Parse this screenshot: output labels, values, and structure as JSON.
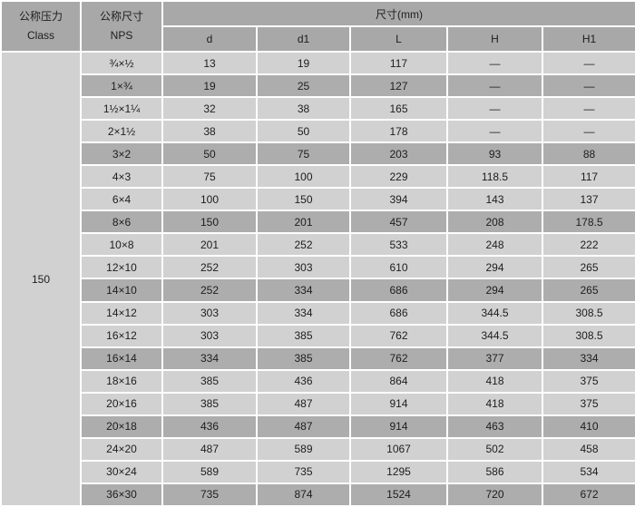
{
  "chart_data": {
    "type": "table",
    "title": "",
    "header": {
      "pressure_label_cn": "公称压力",
      "pressure_label_en": "Class",
      "size_label_cn": "公称尺寸",
      "size_label_en": "NPS",
      "dimensions_label": "尺寸(mm)",
      "sub_columns": [
        "d",
        "d1",
        "L",
        "H",
        "H1"
      ]
    },
    "class_value": "150",
    "rows": [
      {
        "nps": "¾×½",
        "d": "13",
        "d1": "19",
        "L": "117",
        "H": "—",
        "H1": "—"
      },
      {
        "nps": "1×¾",
        "d": "19",
        "d1": "25",
        "L": "127",
        "H": "—",
        "H1": "—"
      },
      {
        "nps": "1½×1¼",
        "d": "32",
        "d1": "38",
        "L": "165",
        "H": "—",
        "H1": "—"
      },
      {
        "nps": "2×1½",
        "d": "38",
        "d1": "50",
        "L": "178",
        "H": "—",
        "H1": "—"
      },
      {
        "nps": "3×2",
        "d": "50",
        "d1": "75",
        "L": "203",
        "H": "93",
        "H1": "88"
      },
      {
        "nps": "4×3",
        "d": "75",
        "d1": "100",
        "L": "229",
        "H": "118.5",
        "H1": "117"
      },
      {
        "nps": "6×4",
        "d": "100",
        "d1": "150",
        "L": "394",
        "H": "143",
        "H1": "137"
      },
      {
        "nps": "8×6",
        "d": "150",
        "d1": "201",
        "L": "457",
        "H": "208",
        "H1": "178.5"
      },
      {
        "nps": "10×8",
        "d": "201",
        "d1": "252",
        "L": "533",
        "H": "248",
        "H1": "222"
      },
      {
        "nps": "12×10",
        "d": "252",
        "d1": "303",
        "L": "610",
        "H": "294",
        "H1": "265"
      },
      {
        "nps": "14×10",
        "d": "252",
        "d1": "334",
        "L": "686",
        "H": "294",
        "H1": "265"
      },
      {
        "nps": "14×12",
        "d": "303",
        "d1": "334",
        "L": "686",
        "H": "344.5",
        "H1": "308.5"
      },
      {
        "nps": "16×12",
        "d": "303",
        "d1": "385",
        "L": "762",
        "H": "344.5",
        "H1": "308.5"
      },
      {
        "nps": "16×14",
        "d": "334",
        "d1": "385",
        "L": "762",
        "H": "377",
        "H1": "334"
      },
      {
        "nps": "18×16",
        "d": "385",
        "d1": "436",
        "L": "864",
        "H": "418",
        "H1": "375"
      },
      {
        "nps": "20×16",
        "d": "385",
        "d1": "487",
        "L": "914",
        "H": "418",
        "H1": "375"
      },
      {
        "nps": "20×18",
        "d": "436",
        "d1": "487",
        "L": "914",
        "H": "463",
        "H1": "410"
      },
      {
        "nps": "24×20",
        "d": "487",
        "d1": "589",
        "L": "1067",
        "H": "502",
        "H1": "458"
      },
      {
        "nps": "30×24",
        "d": "589",
        "d1": "735",
        "L": "1295",
        "H": "586",
        "H1": "534"
      },
      {
        "nps": "36×30",
        "d": "735",
        "d1": "874",
        "L": "1524",
        "H": "720",
        "H1": "672"
      }
    ]
  },
  "colors": {
    "header_bg": "#a8a8a8",
    "row_dark_bg": "#adadad",
    "row_light_bg": "#d1d1d1",
    "border": "#ffffff",
    "text": "#1d1d1d"
  }
}
